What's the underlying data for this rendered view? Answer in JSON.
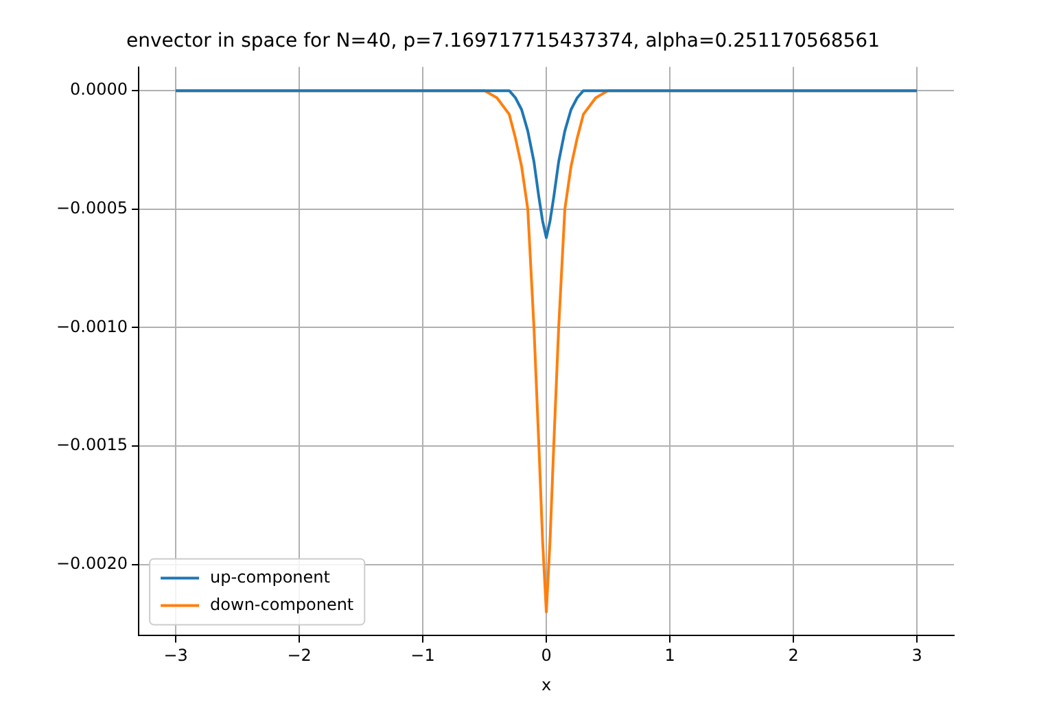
{
  "chart_data": {
    "type": "line",
    "title": "envector in space for N=40, p=7.169717715437374, alpha=0.251170568561",
    "xlabel": "x",
    "x": [
      -3,
      -0.6,
      -0.5,
      -0.4,
      -0.3,
      -0.25,
      -0.2,
      -0.15,
      -0.1,
      -0.06,
      -0.03,
      0,
      0.03,
      0.06,
      0.1,
      0.15,
      0.2,
      0.25,
      0.3,
      0.4,
      0.5,
      0.6,
      3
    ],
    "series": [
      {
        "name": "up-component",
        "color": "#1f77b4",
        "values": [
          0,
          0,
          0,
          0,
          0,
          -3e-05,
          -8e-05,
          -0.00017,
          -0.0003,
          -0.00045,
          -0.00055,
          -0.00062,
          -0.00055,
          -0.00045,
          -0.0003,
          -0.00017,
          -8e-05,
          -3e-05,
          0,
          0,
          0,
          0,
          0
        ]
      },
      {
        "name": "down-component",
        "color": "#ff7f0e",
        "values": [
          0,
          0,
          0,
          -3e-05,
          -0.0001,
          -0.0002,
          -0.00032,
          -0.0005,
          -0.001,
          -0.0015,
          -0.0019,
          -0.0022,
          -0.0019,
          -0.0015,
          -0.001,
          -0.0005,
          -0.00032,
          -0.0002,
          -0.0001,
          -3e-05,
          0,
          0,
          0
        ]
      }
    ],
    "xlim": [
      -3.3,
      3.3
    ],
    "ylim": [
      -0.0023,
      0.0001
    ],
    "xticks": [
      {
        "value": -3,
        "label": "−3"
      },
      {
        "value": -2,
        "label": "−2"
      },
      {
        "value": -1,
        "label": "−1"
      },
      0,
      1,
      2,
      3
    ],
    "yticks": [
      {
        "value": -0.002,
        "label": "−0.0020"
      },
      {
        "value": -0.0015,
        "label": "−0.0015"
      },
      {
        "value": -0.001,
        "label": "−0.0010"
      },
      {
        "value": -0.0005,
        "label": "−0.0005"
      },
      {
        "value": 0,
        "label": "0.0000"
      }
    ],
    "grid": true,
    "legend": "bottom left",
    "line_style": "solid",
    "marker": "none"
  }
}
